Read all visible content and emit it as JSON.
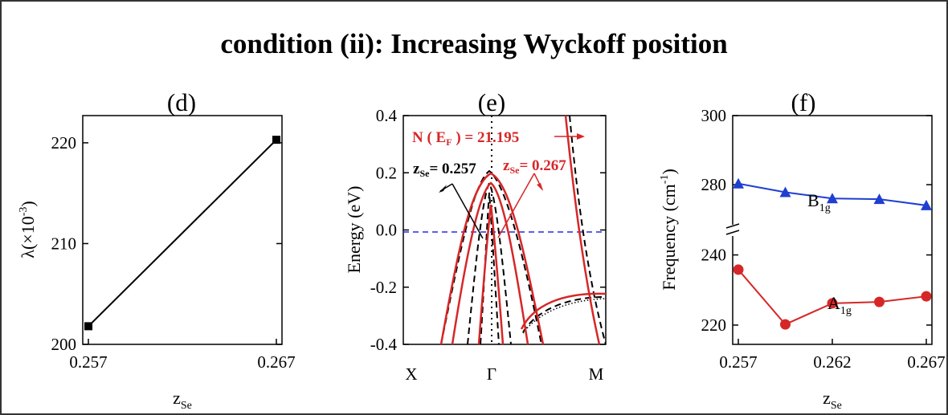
{
  "figure": {
    "title": "condition (ii): Increasing Wyckoff position",
    "panel_labels": [
      "(d)",
      "(e)",
      "(f)"
    ]
  },
  "colors": {
    "black": "#000000",
    "red": "#d62728",
    "blue": "#1f3fd0",
    "dash_blue": "#2a2ae0",
    "frame": "#333333"
  },
  "chart_data": [
    {
      "type": "line",
      "panel": "(d)",
      "ylabel": "λ(×10",
      "ylabel_exp": "-3",
      "ylabel_close": ")",
      "xlabel_main": "z",
      "xlabel_sub": "Se",
      "xlim": [
        0.2567,
        0.2673
      ],
      "ylim": [
        200,
        222.7
      ],
      "xticks": [
        0.257,
        0.267
      ],
      "xtick_labels": [
        "0.257",
        "0.267"
      ],
      "yticks": [
        200,
        210,
        220
      ],
      "ytick_labels": [
        "200",
        "210",
        "220"
      ],
      "series": [
        {
          "x": [
            0.257,
            0.267
          ],
          "y": [
            201.8,
            220.3
          ],
          "color": "#000000",
          "marker": "square"
        }
      ]
    },
    {
      "type": "line",
      "panel": "(e)",
      "ylabel": "Energy (eV)",
      "xlim": [
        0,
        1
      ],
      "ylim": [
        -0.4,
        0.4
      ],
      "xtick_labels": [
        "X",
        "Γ",
        "M"
      ],
      "yticks": [
        -0.4,
        -0.2,
        0.0,
        0.2,
        0.4
      ],
      "ytick_labels": [
        "-0.4",
        "-0.2",
        "0.0",
        "0.2",
        "0.4"
      ],
      "fermi_level": 0.0,
      "annotations": [
        {
          "text": "N ( E",
          "sub": "F",
          "tail": " ) = 21.195",
          "color": "#d62728"
        },
        {
          "text": "z",
          "sub": "Se",
          "tail": "= 0.257",
          "color": "#000000"
        },
        {
          "text": "z",
          "sub": "Se",
          "tail": "= 0.267",
          "color": "#d62728"
        }
      ],
      "series": [
        {
          "z_se": 0.257,
          "style": "dashed",
          "color": "#000000"
        },
        {
          "z_se": 0.267,
          "style": "solid",
          "color": "#d62728"
        }
      ]
    },
    {
      "type": "line",
      "panel": "(f)",
      "ylabel": "Frequency (cm",
      "ylabel_exp": "-1",
      "ylabel_close": ")",
      "xlabel_main": "z",
      "xlabel_sub": "Se",
      "xlim": [
        0.2567,
        0.2673
      ],
      "broken_axis": true,
      "xticks": [
        0.257,
        0.262,
        0.267
      ],
      "xtick_labels": [
        "0.257",
        "0.262",
        "0.267"
      ],
      "upper_yticks": [
        280,
        300
      ],
      "upper_ytick_labels": [
        "280",
        "300"
      ],
      "lower_yticks": [
        220,
        240
      ],
      "lower_ytick_labels": [
        "220",
        "240"
      ],
      "series": [
        {
          "name": "B",
          "name_sub": "1g",
          "color": "#1f3fd0",
          "marker": "triangle",
          "x": [
            0.257,
            0.2595,
            0.262,
            0.2645,
            0.267
          ],
          "y": [
            280.3,
            277.8,
            276.0,
            275.8,
            274.0
          ]
        },
        {
          "name": "A",
          "name_sub": "1g",
          "color": "#d62728",
          "marker": "circle",
          "x": [
            0.257,
            0.2595,
            0.262,
            0.2645,
            0.267
          ],
          "y": [
            235.8,
            220.2,
            226.2,
            226.6,
            228.2
          ]
        }
      ]
    }
  ]
}
